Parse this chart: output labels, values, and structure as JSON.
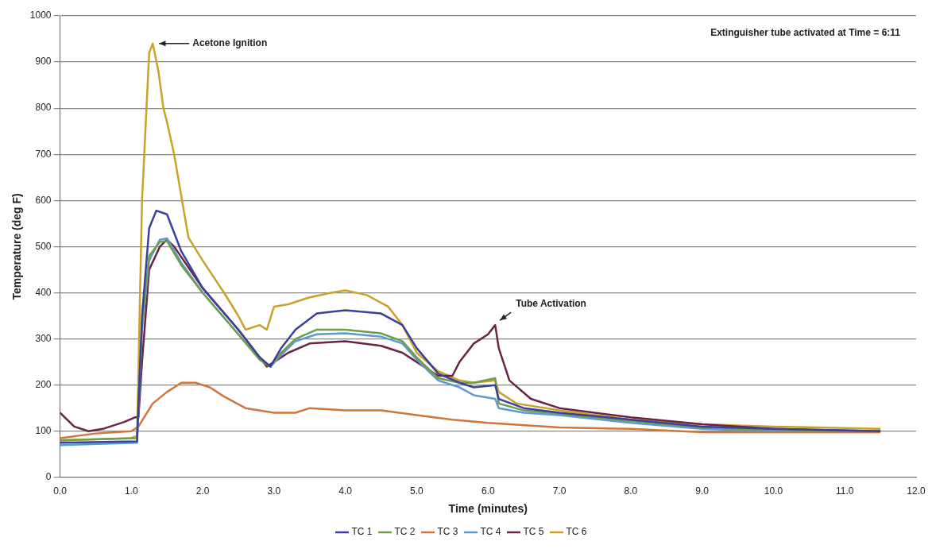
{
  "chart_data": {
    "type": "line",
    "xlabel": "Time (minutes)",
    "ylabel": "Temperature (deg F)",
    "xlim": [
      0,
      12
    ],
    "ylim": [
      0,
      1000
    ],
    "xticks": [
      {
        "value": 0,
        "label": "0.0"
      },
      {
        "value": 1,
        "label": "1.0"
      },
      {
        "value": 2,
        "label": "2.0"
      },
      {
        "value": 3,
        "label": "3.0"
      },
      {
        "value": 4,
        "label": "4.0"
      },
      {
        "value": 5,
        "label": "5.0"
      },
      {
        "value": 6,
        "label": "6.0"
      },
      {
        "value": 7,
        "label": "7.0"
      },
      {
        "value": 8,
        "label": "8.0"
      },
      {
        "value": 9,
        "label": "9.0"
      },
      {
        "value": 10,
        "label": "10.0"
      },
      {
        "value": 11,
        "label": "11.0"
      },
      {
        "value": 12,
        "label": "12.0"
      }
    ],
    "yticks": [
      0,
      100,
      200,
      300,
      400,
      500,
      600,
      700,
      800,
      900,
      1000
    ],
    "grid": "y",
    "legend": "bottom",
    "marker": "none",
    "line_style": "solid",
    "annotations": [
      {
        "text": "Acetone Ignition",
        "x": 1.3,
        "y": 940
      },
      {
        "text": "Tube Activation",
        "x": 6.1,
        "y": 330
      },
      "Extinguisher tube activated at Time = 6:11"
    ],
    "series": [
      {
        "name": "TC 1",
        "color": "#3b3f9e",
        "x": [
          0,
          1.08,
          1.15,
          1.25,
          1.35,
          1.5,
          1.7,
          2,
          2.5,
          2.8,
          2.95,
          3.1,
          3.3,
          3.6,
          4,
          4.5,
          4.8,
          5,
          5.3,
          5.6,
          5.8,
          6.1,
          6.15,
          6.5,
          7,
          8,
          9,
          10,
          11.5
        ],
        "values": [
          75,
          78,
          350,
          540,
          578,
          570,
          490,
          410,
          320,
          260,
          240,
          280,
          320,
          355,
          362,
          355,
          330,
          280,
          225,
          205,
          195,
          200,
          170,
          150,
          140,
          125,
          110,
          105,
          100
        ]
      },
      {
        "name": "TC 2",
        "color": "#6e9e4a",
        "x": [
          0,
          1.08,
          1.15,
          1.25,
          1.4,
          1.5,
          1.7,
          2,
          2.5,
          2.8,
          2.95,
          3.1,
          3.3,
          3.6,
          4,
          4.5,
          4.8,
          5,
          5.3,
          5.6,
          5.8,
          6.1,
          6.15,
          6.5,
          7,
          8,
          9,
          10,
          11.5
        ],
        "values": [
          80,
          85,
          330,
          480,
          510,
          512,
          460,
          400,
          310,
          255,
          240,
          270,
          300,
          320,
          320,
          312,
          295,
          260,
          215,
          205,
          205,
          215,
          160,
          145,
          138,
          122,
          108,
          103,
          100
        ]
      },
      {
        "name": "TC 3",
        "color": "#d0763a",
        "x": [
          0,
          0.5,
          1,
          1.1,
          1.3,
          1.5,
          1.7,
          1.9,
          2.1,
          2.3,
          2.6,
          3,
          3.3,
          3.5,
          4,
          4.5,
          5,
          5.5,
          6,
          7,
          8,
          9,
          10,
          11.5
        ],
        "values": [
          85,
          95,
          100,
          110,
          160,
          185,
          205,
          205,
          195,
          175,
          150,
          140,
          140,
          150,
          145,
          145,
          135,
          125,
          118,
          108,
          105,
          98,
          98,
          98
        ]
      },
      {
        "name": "TC 4",
        "color": "#5b9bd5",
        "x": [
          0,
          1.08,
          1.15,
          1.25,
          1.4,
          1.5,
          1.7,
          2,
          2.5,
          2.8,
          2.95,
          3.1,
          3.3,
          3.6,
          4,
          4.5,
          4.8,
          5,
          5.3,
          5.6,
          5.8,
          6.1,
          6.15,
          6.5,
          7,
          8,
          9,
          10,
          11.5
        ],
        "values": [
          70,
          75,
          320,
          470,
          515,
          518,
          465,
          400,
          310,
          255,
          240,
          265,
          295,
          310,
          312,
          305,
          290,
          255,
          210,
          195,
          178,
          170,
          150,
          140,
          135,
          118,
          105,
          100,
          100
        ]
      },
      {
        "name": "TC 5",
        "color": "#6a2448",
        "x": [
          0,
          0.2,
          0.4,
          0.6,
          0.9,
          1.05,
          1.1,
          1.15,
          1.25,
          1.4,
          1.5,
          1.6,
          2,
          2.5,
          2.9,
          3.2,
          3.5,
          4,
          4.5,
          4.8,
          5,
          5.3,
          5.5,
          5.6,
          5.8,
          6,
          6.1,
          6.15,
          6.3,
          6.6,
          7,
          8,
          9,
          10,
          11.5
        ],
        "values": [
          140,
          110,
          100,
          105,
          120,
          130,
          130,
          250,
          450,
          500,
          515,
          500,
          410,
          320,
          240,
          270,
          290,
          295,
          285,
          270,
          250,
          220,
          220,
          250,
          290,
          310,
          330,
          280,
          210,
          170,
          150,
          130,
          115,
          105,
          100
        ]
      },
      {
        "name": "TC 6",
        "color": "#c9a227",
        "x": [
          0,
          1,
          1.08,
          1.15,
          1.25,
          1.3,
          1.38,
          1.45,
          1.5,
          1.6,
          1.8,
          2,
          2.3,
          2.5,
          2.6,
          2.8,
          2.9,
          3,
          3.2,
          3.5,
          3.8,
          4,
          4.3,
          4.6,
          4.8,
          5,
          5.3,
          5.6,
          5.8,
          6.1,
          6.15,
          6.4,
          7,
          8,
          9,
          10,
          11.5
        ],
        "values": [
          80,
          85,
          90,
          600,
          920,
          940,
          880,
          800,
          770,
          700,
          520,
          470,
          400,
          350,
          320,
          330,
          320,
          370,
          375,
          390,
          400,
          405,
          395,
          370,
          330,
          270,
          230,
          210,
          205,
          210,
          185,
          160,
          145,
          125,
          115,
          110,
          105
        ]
      }
    ]
  }
}
